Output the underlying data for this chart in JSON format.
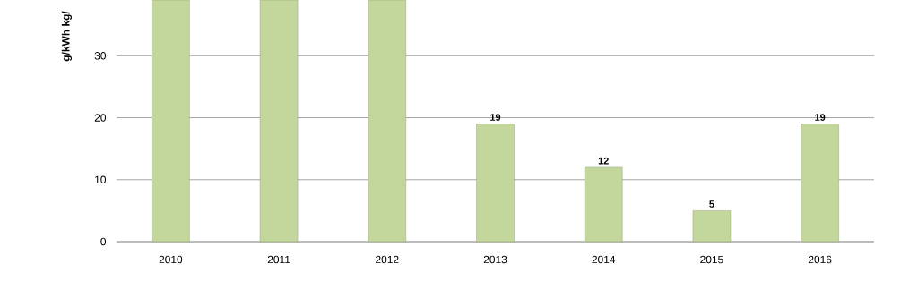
{
  "chart_data": {
    "type": "bar",
    "ylabel": "g/kWh    kg/",
    "categories": [
      "2010",
      "2011",
      "2012",
      "2013",
      "2014",
      "2015",
      "2016"
    ],
    "values": [
      39,
      39,
      39,
      19,
      12,
      5,
      19
    ],
    "value_labels": [
      null,
      null,
      null,
      "19",
      "12",
      "5",
      "19"
    ],
    "color": "#c3d69b",
    "ylim": [
      0,
      39
    ],
    "yticks": [
      0,
      10,
      20,
      30
    ],
    "grid": "y"
  }
}
